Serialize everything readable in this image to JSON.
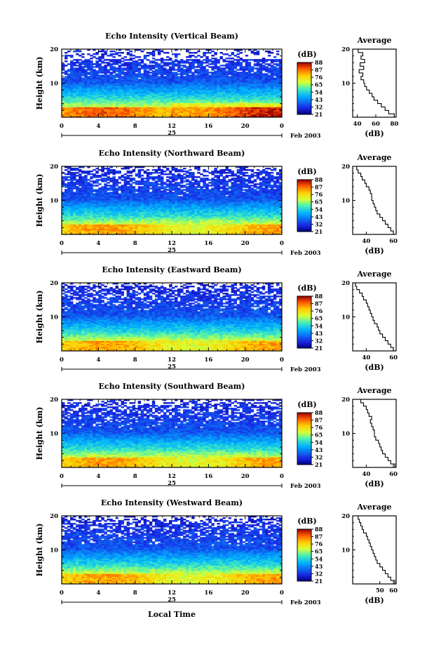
{
  "figure": {
    "xlabel": "Local Time",
    "date_label": "Feb 2003",
    "day_label": "25"
  },
  "colorbar": {
    "unit": "(dB)",
    "ticks": [
      "88",
      "87",
      "76",
      "65",
      "54",
      "43",
      "32",
      "21"
    ]
  },
  "chart_data": [
    {
      "type": "heatmap",
      "title": "Echo Intensity (Vertical Beam)",
      "ylabel": "Height (km)",
      "x_ticks": [
        "0",
        "4",
        "8",
        "12",
        "16",
        "20",
        "0"
      ],
      "y_ticks": [
        "20",
        "10"
      ],
      "xlim": [
        0,
        24
      ],
      "ylim": [
        0,
        20
      ],
      "color_scale_db": [
        21,
        88
      ],
      "profile": {
        "title": "Average",
        "xlabel": "(dB)",
        "x_ticks": [
          "40",
          "60",
          "80"
        ],
        "xlim": [
          35,
          82
        ],
        "ylim": [
          0,
          20
        ],
        "height_km": [
          1,
          2,
          3,
          4,
          5,
          6,
          7,
          8,
          9,
          10,
          11,
          12,
          13,
          14,
          15,
          16,
          17,
          18,
          19,
          20
        ],
        "db": [
          80,
          74,
          70,
          66,
          62,
          58,
          56,
          53,
          50,
          48,
          47,
          44,
          46,
          42,
          47,
          43,
          48,
          44,
          46,
          41
        ]
      }
    },
    {
      "type": "heatmap",
      "title": "Echo Intensity (Northward Beam)",
      "ylabel": "Height (km)",
      "x_ticks": [
        "0",
        "4",
        "8",
        "12",
        "16",
        "20",
        "0"
      ],
      "y_ticks": [
        "20",
        "10"
      ],
      "xlim": [
        0,
        24
      ],
      "ylim": [
        0,
        20
      ],
      "color_scale_db": [
        21,
        88
      ],
      "profile": {
        "title": "Average",
        "xlabel": "(dB)",
        "x_ticks": [
          "40",
          "60"
        ],
        "xlim": [
          30,
          62
        ],
        "ylim": [
          0,
          20
        ],
        "height_km": [
          1,
          2,
          3,
          4,
          5,
          6,
          7,
          8,
          9,
          10,
          11,
          12,
          13,
          14,
          15,
          16,
          17,
          18,
          19,
          20
        ],
        "db": [
          60,
          58,
          56,
          54,
          52,
          50,
          48,
          47,
          46,
          45,
          44,
          44,
          43,
          42,
          40,
          39,
          37,
          36,
          34,
          33
        ]
      }
    },
    {
      "type": "heatmap",
      "title": "Echo Intensity (Eastward Beam)",
      "ylabel": "Height (km)",
      "x_ticks": [
        "0",
        "4",
        "8",
        "12",
        "16",
        "20",
        "0"
      ],
      "y_ticks": [
        "20",
        "10"
      ],
      "xlim": [
        0,
        24
      ],
      "ylim": [
        0,
        20
      ],
      "color_scale_db": [
        21,
        88
      ],
      "profile": {
        "title": "Average",
        "xlabel": "(dB)",
        "x_ticks": [
          "40",
          "60"
        ],
        "xlim": [
          30,
          62
        ],
        "ylim": [
          0,
          20
        ],
        "height_km": [
          1,
          2,
          3,
          4,
          5,
          6,
          7,
          8,
          9,
          10,
          11,
          12,
          13,
          14,
          15,
          16,
          17,
          18,
          19,
          20
        ],
        "db": [
          60,
          58,
          56,
          54,
          52,
          50,
          49,
          48,
          46,
          45,
          44,
          43,
          42,
          41,
          40,
          38,
          37,
          35,
          33,
          32
        ]
      }
    },
    {
      "type": "heatmap",
      "title": "Echo Intensity (Southward Beam)",
      "ylabel": "Height (km)",
      "x_ticks": [
        "0",
        "4",
        "8",
        "12",
        "16",
        "20",
        "0"
      ],
      "y_ticks": [
        "20",
        "10"
      ],
      "xlim": [
        0,
        24
      ],
      "ylim": [
        0,
        20
      ],
      "color_scale_db": [
        21,
        88
      ],
      "profile": {
        "title": "Average",
        "xlabel": "(dB)",
        "x_ticks": [
          "40",
          "60"
        ],
        "xlim": [
          30,
          62
        ],
        "ylim": [
          0,
          20
        ],
        "height_km": [
          1,
          2,
          3,
          4,
          5,
          6,
          7,
          8,
          9,
          10,
          11,
          12,
          13,
          14,
          15,
          16,
          17,
          18,
          19,
          20
        ],
        "db": [
          61,
          58,
          56,
          54,
          52,
          51,
          50,
          49,
          47,
          46,
          46,
          45,
          44,
          43,
          44,
          42,
          41,
          40,
          38,
          36
        ]
      }
    },
    {
      "type": "heatmap",
      "title": "Echo Intensity (Westward Beam)",
      "ylabel": "Height (km)",
      "x_ticks": [
        "0",
        "4",
        "8",
        "12",
        "16",
        "20",
        "0"
      ],
      "y_ticks": [
        "20",
        "10"
      ],
      "xlim": [
        0,
        24
      ],
      "ylim": [
        0,
        20
      ],
      "color_scale_db": [
        21,
        88
      ],
      "profile": {
        "title": "Average",
        "xlabel": "(dB)",
        "x_ticks": [
          "50",
          "60"
        ],
        "xlim": [
          30,
          62
        ],
        "ylim": [
          0,
          20
        ],
        "height_km": [
          1,
          2,
          3,
          4,
          5,
          6,
          7,
          8,
          9,
          10,
          11,
          12,
          13,
          14,
          15,
          16,
          17,
          18,
          19,
          20
        ],
        "db": [
          61,
          58,
          56,
          54,
          52,
          50,
          48,
          47,
          46,
          45,
          44,
          43,
          42,
          41,
          40,
          38,
          37,
          36,
          35,
          34
        ]
      }
    }
  ]
}
